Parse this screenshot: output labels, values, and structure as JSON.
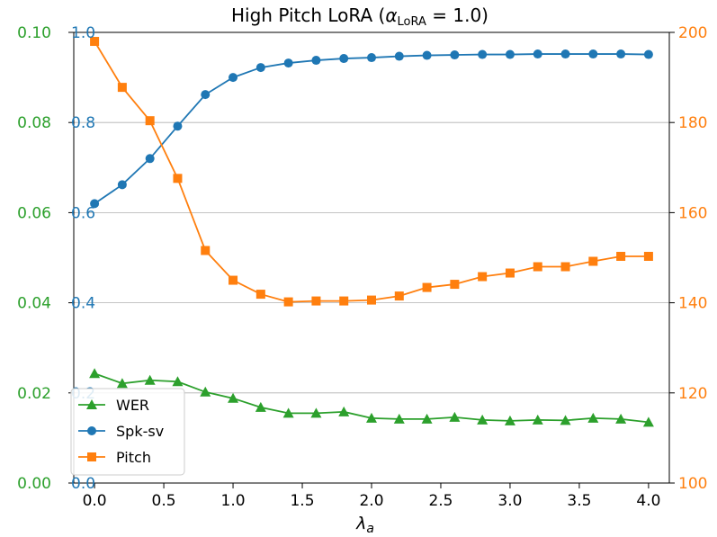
{
  "chart_data": {
    "type": "line",
    "title": {
      "main": "High Pitch LoRA (",
      "alpha": "α",
      "sub": "LoRA",
      "rest": " = 1.0)"
    },
    "xlabel": {
      "symbol": "λ",
      "sub": "a"
    },
    "x": [
      0.0,
      0.2,
      0.4,
      0.6,
      0.8,
      1.0,
      1.2,
      1.4,
      1.6,
      1.8,
      2.0,
      2.2,
      2.4,
      2.6,
      2.8,
      3.0,
      3.2,
      3.4,
      3.6,
      3.8,
      4.0
    ],
    "xlim": [
      -0.15,
      4.15
    ],
    "xticks": [
      "0.0",
      "0.5",
      "1.0",
      "1.5",
      "2.0",
      "2.5",
      "3.0",
      "3.5",
      "4.0"
    ],
    "axes": {
      "left_outer": {
        "ylim": [
          0.0,
          0.1
        ],
        "ticks": [
          "0.00",
          "0.02",
          "0.04",
          "0.06",
          "0.08",
          "0.10"
        ],
        "color": "#2ca02c"
      },
      "left_inner": {
        "ylim": [
          0.0,
          1.0
        ],
        "ticks": [
          "0.0",
          "0.2",
          "0.4",
          "0.6",
          "0.8",
          "1.0"
        ],
        "color": "#1f77b4"
      },
      "right": {
        "ylim": [
          100,
          200
        ],
        "ticks": [
          "100",
          "120",
          "140",
          "160",
          "180",
          "200"
        ],
        "color": "#ff7f0e"
      }
    },
    "grid": "horizontal",
    "legend_position": "lower-left",
    "series": [
      {
        "name": "WER",
        "axis": "left_outer",
        "marker": "triangle",
        "color": "#2ca02c",
        "values": [
          0.0243,
          0.0221,
          0.0228,
          0.0225,
          0.0202,
          0.0188,
          0.0168,
          0.0155,
          0.0155,
          0.0158,
          0.0144,
          0.0142,
          0.0142,
          0.0146,
          0.014,
          0.0138,
          0.014,
          0.0139,
          0.0144,
          0.0142,
          0.0135
        ]
      },
      {
        "name": "Spk-sv",
        "axis": "left_inner",
        "marker": "circle",
        "color": "#1f77b4",
        "values": [
          0.62,
          0.662,
          0.72,
          0.792,
          0.862,
          0.9,
          0.922,
          0.932,
          0.938,
          0.942,
          0.944,
          0.947,
          0.949,
          0.95,
          0.951,
          0.951,
          0.952,
          0.952,
          0.952,
          0.952,
          0.951
        ]
      },
      {
        "name": "Pitch",
        "axis": "right",
        "marker": "square",
        "color": "#ff7f0e",
        "values": [
          198.0,
          187.8,
          180.4,
          167.6,
          151.6,
          145.0,
          141.9,
          140.2,
          140.4,
          140.4,
          140.6,
          141.5,
          143.4,
          144.1,
          145.8,
          146.6,
          148.0,
          148.0,
          149.2,
          150.3,
          150.3
        ]
      }
    ]
  }
}
